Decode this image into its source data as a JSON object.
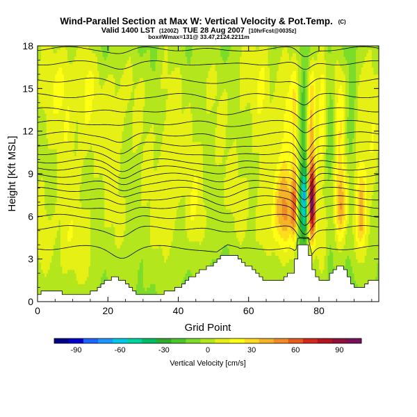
{
  "chart_data": {
    "type": "heatmap",
    "title": "Wind-Parallel Section at Max W: Vertical Velocity & Pot.Temp.",
    "title_mark": "(C)",
    "subtitle_main": "Valid 1400 LST",
    "subtitle_paren1": "(1200Z)",
    "subtitle_date": "TUE 28 Aug 2007",
    "subtitle_paren2": "[10hrFcst@0035z]",
    "subtitle3": "box#Wmax=131@ 33.47,2124.2211m",
    "xlabel": "Grid Point",
    "ylabel": "Height [Kft MSL]",
    "xlim": [
      0,
      97
    ],
    "ylim": [
      0,
      18
    ],
    "x_ticks": [
      "0",
      "20",
      "40",
      "60",
      "80"
    ],
    "y_ticks": [
      "0",
      "3",
      "6",
      "9",
      "12",
      "15",
      "18"
    ],
    "colorbar": {
      "label": "Vertical Velocity [cm/s]",
      "range": [
        -105,
        105
      ],
      "tick_labels": [
        "-90",
        "-60",
        "-30",
        "0",
        "30",
        "60",
        "90"
      ],
      "colors": [
        "#00008b",
        "#0000cd",
        "#1e64ff",
        "#1e96ff",
        "#00c8e6",
        "#00d2a0",
        "#00be64",
        "#2faa2f",
        "#4cc52c",
        "#7cdc2a",
        "#b4e61e",
        "#e6f014",
        "#ffff14",
        "#ffdc1e",
        "#f5b428",
        "#f08c28",
        "#e65a1e",
        "#d2281e",
        "#b4141e",
        "#8c0f3c",
        "#78105a"
      ]
    },
    "terrain": [
      {
        "x": 0,
        "h": 0.4
      },
      {
        "x": 2,
        "h": 0.8
      },
      {
        "x": 6,
        "h": 0.8
      },
      {
        "x": 8,
        "h": 0.4
      },
      {
        "x": 14,
        "h": 0.4
      },
      {
        "x": 17,
        "h": 0.9
      },
      {
        "x": 20,
        "h": 1.5
      },
      {
        "x": 22,
        "h": 1.9
      },
      {
        "x": 24,
        "h": 1.5
      },
      {
        "x": 26,
        "h": 1.0
      },
      {
        "x": 28,
        "h": 0.6
      },
      {
        "x": 36,
        "h": 0.6
      },
      {
        "x": 40,
        "h": 1.0
      },
      {
        "x": 45,
        "h": 1.9
      },
      {
        "x": 50,
        "h": 2.7
      },
      {
        "x": 54,
        "h": 3.4
      },
      {
        "x": 57,
        "h": 3.2
      },
      {
        "x": 60,
        "h": 2.5
      },
      {
        "x": 63,
        "h": 1.8
      },
      {
        "x": 66,
        "h": 1.4
      },
      {
        "x": 70,
        "h": 1.6
      },
      {
        "x": 73,
        "h": 2.2
      },
      {
        "x": 74,
        "h": 3.9
      },
      {
        "x": 77,
        "h": 3.9
      },
      {
        "x": 78,
        "h": 2.6
      },
      {
        "x": 80,
        "h": 1.6
      },
      {
        "x": 82,
        "h": 1.4
      },
      {
        "x": 85,
        "h": 2.5
      },
      {
        "x": 86,
        "h": 2.6
      },
      {
        "x": 88,
        "h": 2.0
      },
      {
        "x": 90,
        "h": 1.0
      },
      {
        "x": 93,
        "h": 1.0
      },
      {
        "x": 95,
        "h": 1.6
      },
      {
        "x": 97,
        "h": 1.6
      }
    ],
    "features": [
      {
        "x": 2,
        "w": 2,
        "v": 8
      },
      {
        "x": 8,
        "w": 4,
        "v": 14
      },
      {
        "x": 14,
        "w": 2.5,
        "v": 12
      },
      {
        "x": 22,
        "w": 3,
        "v": 10
      },
      {
        "x": 37,
        "w": 3,
        "v": 12
      },
      {
        "x": 45,
        "w": 2.5,
        "v": 9
      },
      {
        "x": 58,
        "w": 2.5,
        "v": 10
      },
      {
        "x": 64,
        "w": 2.5,
        "v": 14
      },
      {
        "x": 69,
        "w": 1.8,
        "v": 30
      },
      {
        "x": 71,
        "w": 1.5,
        "v": 35
      },
      {
        "x": 73,
        "w": 1.0,
        "v": 55
      },
      {
        "x": 75,
        "w": 0.9,
        "v": -45
      },
      {
        "x": 76,
        "w": 0.7,
        "v": -60
      },
      {
        "x": 78,
        "w": 1.0,
        "v": 95
      },
      {
        "x": 81,
        "w": 1.5,
        "v": 25
      },
      {
        "x": 83,
        "w": 1.5,
        "v": -18
      },
      {
        "x": 86,
        "w": 1.6,
        "v": 45
      },
      {
        "x": 89,
        "w": 1.5,
        "v": -14
      },
      {
        "x": 92,
        "w": 1.5,
        "v": 35
      },
      {
        "x": 95,
        "w": 1.5,
        "v": 12
      }
    ],
    "theta_levels_kft": [
      3.8,
      5.2,
      6.0,
      6.7,
      7.3,
      7.9,
      8.4,
      8.9,
      9.4,
      9.9,
      10.5,
      11.1,
      11.8,
      12.6,
      13.5,
      14.5,
      15.6,
      16.8,
      17.8
    ],
    "theta_bumps": [
      {
        "x": 24,
        "w": 4,
        "a": 0.6
      },
      {
        "x": 53,
        "w": 5,
        "a": 0.4
      },
      {
        "x": 76,
        "w": 2.5,
        "a": 1.2
      }
    ]
  }
}
